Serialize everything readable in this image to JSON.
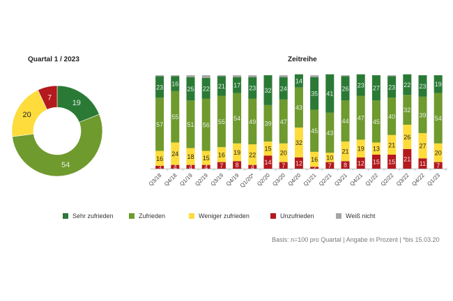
{
  "chart_data": [
    {
      "type": "pie",
      "variant": "donut",
      "title": "Quartal 1 / 2023",
      "slices": [
        {
          "label": "Sehr zufrieden",
          "value": 19
        },
        {
          "label": "Zufrieden",
          "value": 54
        },
        {
          "label": "Weniger zufrieden",
          "value": 20
        },
        {
          "label": "Unzufrieden",
          "value": 7
        },
        {
          "label": "Weiß nicht",
          "value": 0
        }
      ]
    },
    {
      "type": "bar",
      "stacked": true,
      "percent": true,
      "title": "Zeitreihe",
      "xlabel": "",
      "ylabel": "",
      "ylim": [
        0,
        100
      ],
      "categories": [
        "Q3/18",
        "Q4/18",
        "Q1/19",
        "Q2/19",
        "Q3/19",
        "Q4/19",
        "Q1/20*",
        "Q2/20",
        "Q3/20",
        "Q4/20",
        "Q1/21",
        "Q2/21",
        "Q3/21",
        "Q4/21",
        "Q1/22",
        "Q2/22",
        "Q3/22",
        "Q4/22",
        "Q1/23"
      ],
      "series": [
        {
          "name": "Unzufrieden",
          "values": [
            3,
            4,
            4,
            4,
            7,
            8,
            4,
            14,
            7,
            12,
            2,
            7,
            8,
            12,
            15,
            15,
            21,
            11,
            7
          ]
        },
        {
          "name": "Weniger zufrieden",
          "values": [
            16,
            24,
            18,
            15,
            16,
            19,
            22,
            15,
            20,
            32,
            16,
            10,
            21,
            19,
            13,
            21,
            26,
            27,
            20
          ]
        },
        {
          "name": "Zufrieden",
          "values": [
            57,
            55,
            51,
            56,
            55,
            54,
            49,
            39,
            47,
            43,
            45,
            43,
            44,
            47,
            45,
            40,
            32,
            39,
            54
          ]
        },
        {
          "name": "Sehr zufrieden",
          "values": [
            23,
            16,
            25,
            22,
            21,
            17,
            23,
            32,
            24,
            14,
            35,
            41,
            26,
            23,
            27,
            23,
            22,
            23,
            19
          ]
        },
        {
          "name": "Weiß nicht",
          "values": [
            1,
            1,
            2,
            3,
            1,
            2,
            2,
            0,
            2,
            0,
            2,
            0,
            1,
            0,
            0,
            1,
            0,
            0,
            0
          ]
        }
      ],
      "legend_position": "bottom"
    }
  ],
  "legend": [
    {
      "label": "Sehr zufrieden",
      "color": "#2a7a36"
    },
    {
      "label": "Zufrieden",
      "color": "#6f9a2d"
    },
    {
      "label": "Weniger zufrieden",
      "color": "#fddc3c"
    },
    {
      "label": "Unzufrieden",
      "color": "#b3191d"
    },
    {
      "label": "Weiß nicht",
      "color": "#a6a6a6"
    }
  ],
  "colors": {
    "Sehr zufrieden": "#2a7a36",
    "Zufrieden": "#6f9a2d",
    "Weniger zufrieden": "#fddc3c",
    "Unzufrieden": "#b3191d",
    "Weiß nicht": "#a6a6a6"
  },
  "label_colors": {
    "Sehr zufrieden": "#e8f0e8",
    "Zufrieden": "#e8f0e8",
    "Weniger zufrieden": "#222222",
    "Unzufrieden": "#f4e0e0",
    "Weiß nicht": "#222222"
  },
  "footnote": "Basis: n=100 pro Quartal | Angabe in Prozent | *bis 15.03.20"
}
